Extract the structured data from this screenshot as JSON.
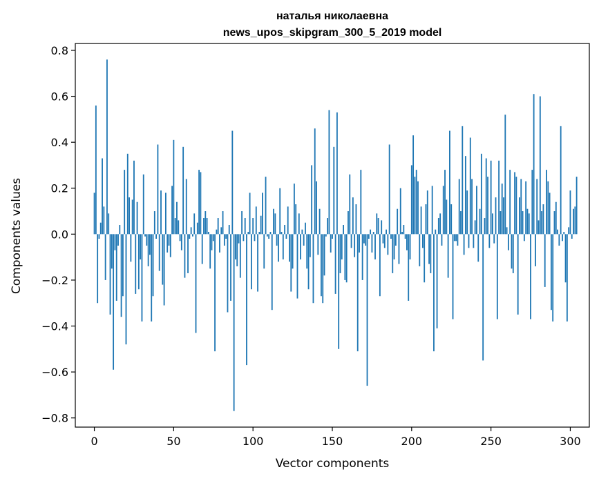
{
  "chart_data": {
    "type": "bar",
    "title_line1": "наталья николаевна",
    "title_line2": "news_upos_skipgram_300_5_2019 model",
    "xlabel": "Vector components",
    "ylabel": "Components values",
    "xlim": [
      -12,
      312
    ],
    "ylim": [
      -0.84,
      0.83
    ],
    "x_ticks": [
      0,
      50,
      100,
      150,
      200,
      250,
      300
    ],
    "x_tick_labels": [
      "0",
      "50",
      "100",
      "150",
      "200",
      "250",
      "300"
    ],
    "y_ticks": [
      -0.8,
      -0.6,
      -0.4,
      -0.2,
      0.0,
      0.2,
      0.4,
      0.6,
      0.8
    ],
    "y_tick_labels": [
      "−0.8",
      "−0.6",
      "−0.4",
      "−0.2",
      "0.0",
      "0.2",
      "0.4",
      "0.6",
      "0.8"
    ],
    "bar_color": "#1f77b4",
    "grid": false,
    "x_start": 0,
    "values": [
      0.18,
      0.56,
      -0.3,
      -0.02,
      0.05,
      0.33,
      0.12,
      -0.2,
      0.76,
      0.09,
      -0.35,
      -0.15,
      -0.59,
      -0.07,
      -0.29,
      -0.05,
      0.04,
      -0.36,
      -0.27,
      0.28,
      -0.48,
      0.35,
      0.16,
      -0.12,
      0.15,
      0.32,
      -0.26,
      0.14,
      -0.24,
      -0.11,
      -0.38,
      0.26,
      -0.01,
      -0.05,
      -0.14,
      -0.09,
      -0.38,
      -0.27,
      0.1,
      -0.02,
      0.39,
      -0.16,
      0.19,
      -0.22,
      -0.31,
      0.18,
      -0.08,
      -0.05,
      -0.1,
      0.21,
      0.41,
      0.07,
      0.14,
      0.06,
      -0.03,
      -0.07,
      0.38,
      -0.19,
      0.24,
      -0.17,
      -0.02,
      0.03,
      -0.01,
      0.09,
      -0.43,
      0.05,
      0.28,
      0.27,
      -0.13,
      0.07,
      0.1,
      0.07,
      0.01,
      -0.15,
      -0.07,
      -0.03,
      -0.51,
      0.02,
      0.07,
      -0.08,
      0.03,
      0.1,
      -0.05,
      -0.02,
      -0.34,
      0.04,
      -0.29,
      0.45,
      -0.77,
      -0.11,
      -0.14,
      -0.04,
      -0.19,
      0.1,
      -0.03,
      0.07,
      -0.57,
      0.01,
      0.18,
      -0.24,
      0.07,
      -0.03,
      0.12,
      -0.25,
      0.01,
      0.08,
      0.18,
      -0.15,
      0.25,
      -0.01,
      -0.02,
      0.01,
      -0.33,
      0.11,
      0.09,
      -0.05,
      -0.12,
      0.2,
      0.01,
      -0.11,
      0.04,
      -0.02,
      0.12,
      -0.12,
      -0.25,
      -0.15,
      0.22,
      0.13,
      -0.28,
      0.09,
      -0.11,
      0.02,
      -0.05,
      0.05,
      -0.15,
      -0.24,
      -0.1,
      0.3,
      -0.3,
      0.46,
      0.23,
      -0.09,
      0.11,
      -0.27,
      -0.3,
      -0.18,
      -0.01,
      0.07,
      0.54,
      -0.08,
      -0.02,
      0.38,
      -0.26,
      0.53,
      -0.5,
      -0.17,
      -0.11,
      0.04,
      -0.2,
      -0.21,
      0.1,
      0.26,
      -0.06,
      0.16,
      -0.1,
      0.13,
      -0.51,
      -0.08,
      0.28,
      -0.2,
      -0.04,
      -0.05,
      -0.66,
      -0.02,
      0.02,
      -0.08,
      0.01,
      -0.11,
      0.09,
      0.07,
      -0.27,
      0.06,
      -0.04,
      -0.06,
      0.02,
      -0.09,
      0.39,
      -0.02,
      -0.17,
      -0.11,
      -0.05,
      0.11,
      -0.13,
      0.2,
      0.01,
      0.04,
      -0.02,
      -0.07,
      -0.29,
      -0.11,
      0.3,
      0.43,
      0.25,
      0.28,
      0.23,
      -0.14,
      0.12,
      -0.06,
      -0.21,
      0.13,
      0.19,
      -0.13,
      -0.17,
      0.21,
      -0.51,
      0.02,
      -0.41,
      0.07,
      0.09,
      -0.05,
      0.21,
      0.28,
      0.15,
      -0.19,
      0.45,
      0.13,
      -0.37,
      -0.03,
      -0.03,
      -0.05,
      0.24,
      0.1,
      0.47,
      -0.09,
      0.34,
      0.19,
      -0.06,
      0.42,
      0.24,
      -0.06,
      0.06,
      0.21,
      -0.12,
      0.11,
      0.35,
      -0.55,
      0.07,
      0.33,
      0.25,
      -0.06,
      0.32,
      0.09,
      -0.04,
      0.16,
      -0.37,
      0.32,
      0.1,
      0.22,
      0.16,
      0.52,
      0.03,
      -0.07,
      0.28,
      -0.15,
      -0.17,
      0.27,
      0.25,
      -0.35,
      0.16,
      0.24,
      0.1,
      -0.03,
      0.23,
      0.11,
      0.09,
      -0.37,
      0.28,
      0.61,
      -0.14,
      0.24,
      0.06,
      0.6,
      0.1,
      0.13,
      -0.23,
      0.28,
      0.23,
      0.18,
      -0.33,
      -0.38,
      0.1,
      0.14,
      0.02,
      -0.05,
      0.47,
      -0.03,
      0.01,
      -0.21,
      -0.38,
      0.03,
      0.19,
      -0.02,
      0.11,
      0.12,
      0.25
    ]
  }
}
